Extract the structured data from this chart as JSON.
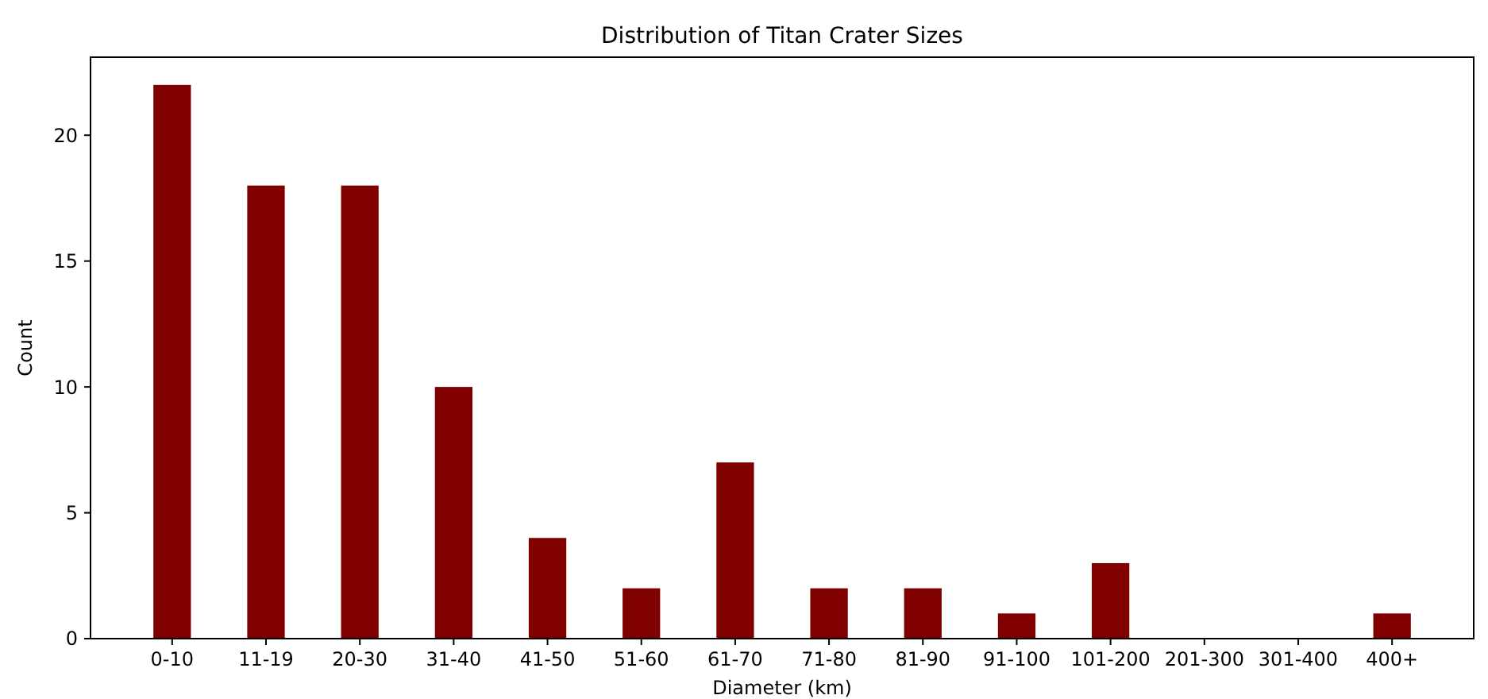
{
  "chart_data": {
    "type": "bar",
    "title": "Distribution of Titan Crater Sizes",
    "xlabel": "Diameter (km)",
    "ylabel": "Count",
    "categories": [
      "0-10",
      "11-19",
      "20-30",
      "31-40",
      "41-50",
      "51-60",
      "61-70",
      "71-80",
      "81-90",
      "91-100",
      "101-200",
      "201-300",
      "301-400",
      "400+"
    ],
    "values": [
      22,
      18,
      18,
      10,
      4,
      2,
      7,
      2,
      2,
      1,
      3,
      0,
      0,
      1
    ],
    "color": "#800000",
    "ylim": [
      0,
      23.1
    ],
    "yticks": [
      0,
      5,
      10,
      15,
      20
    ],
    "grid": false
  }
}
